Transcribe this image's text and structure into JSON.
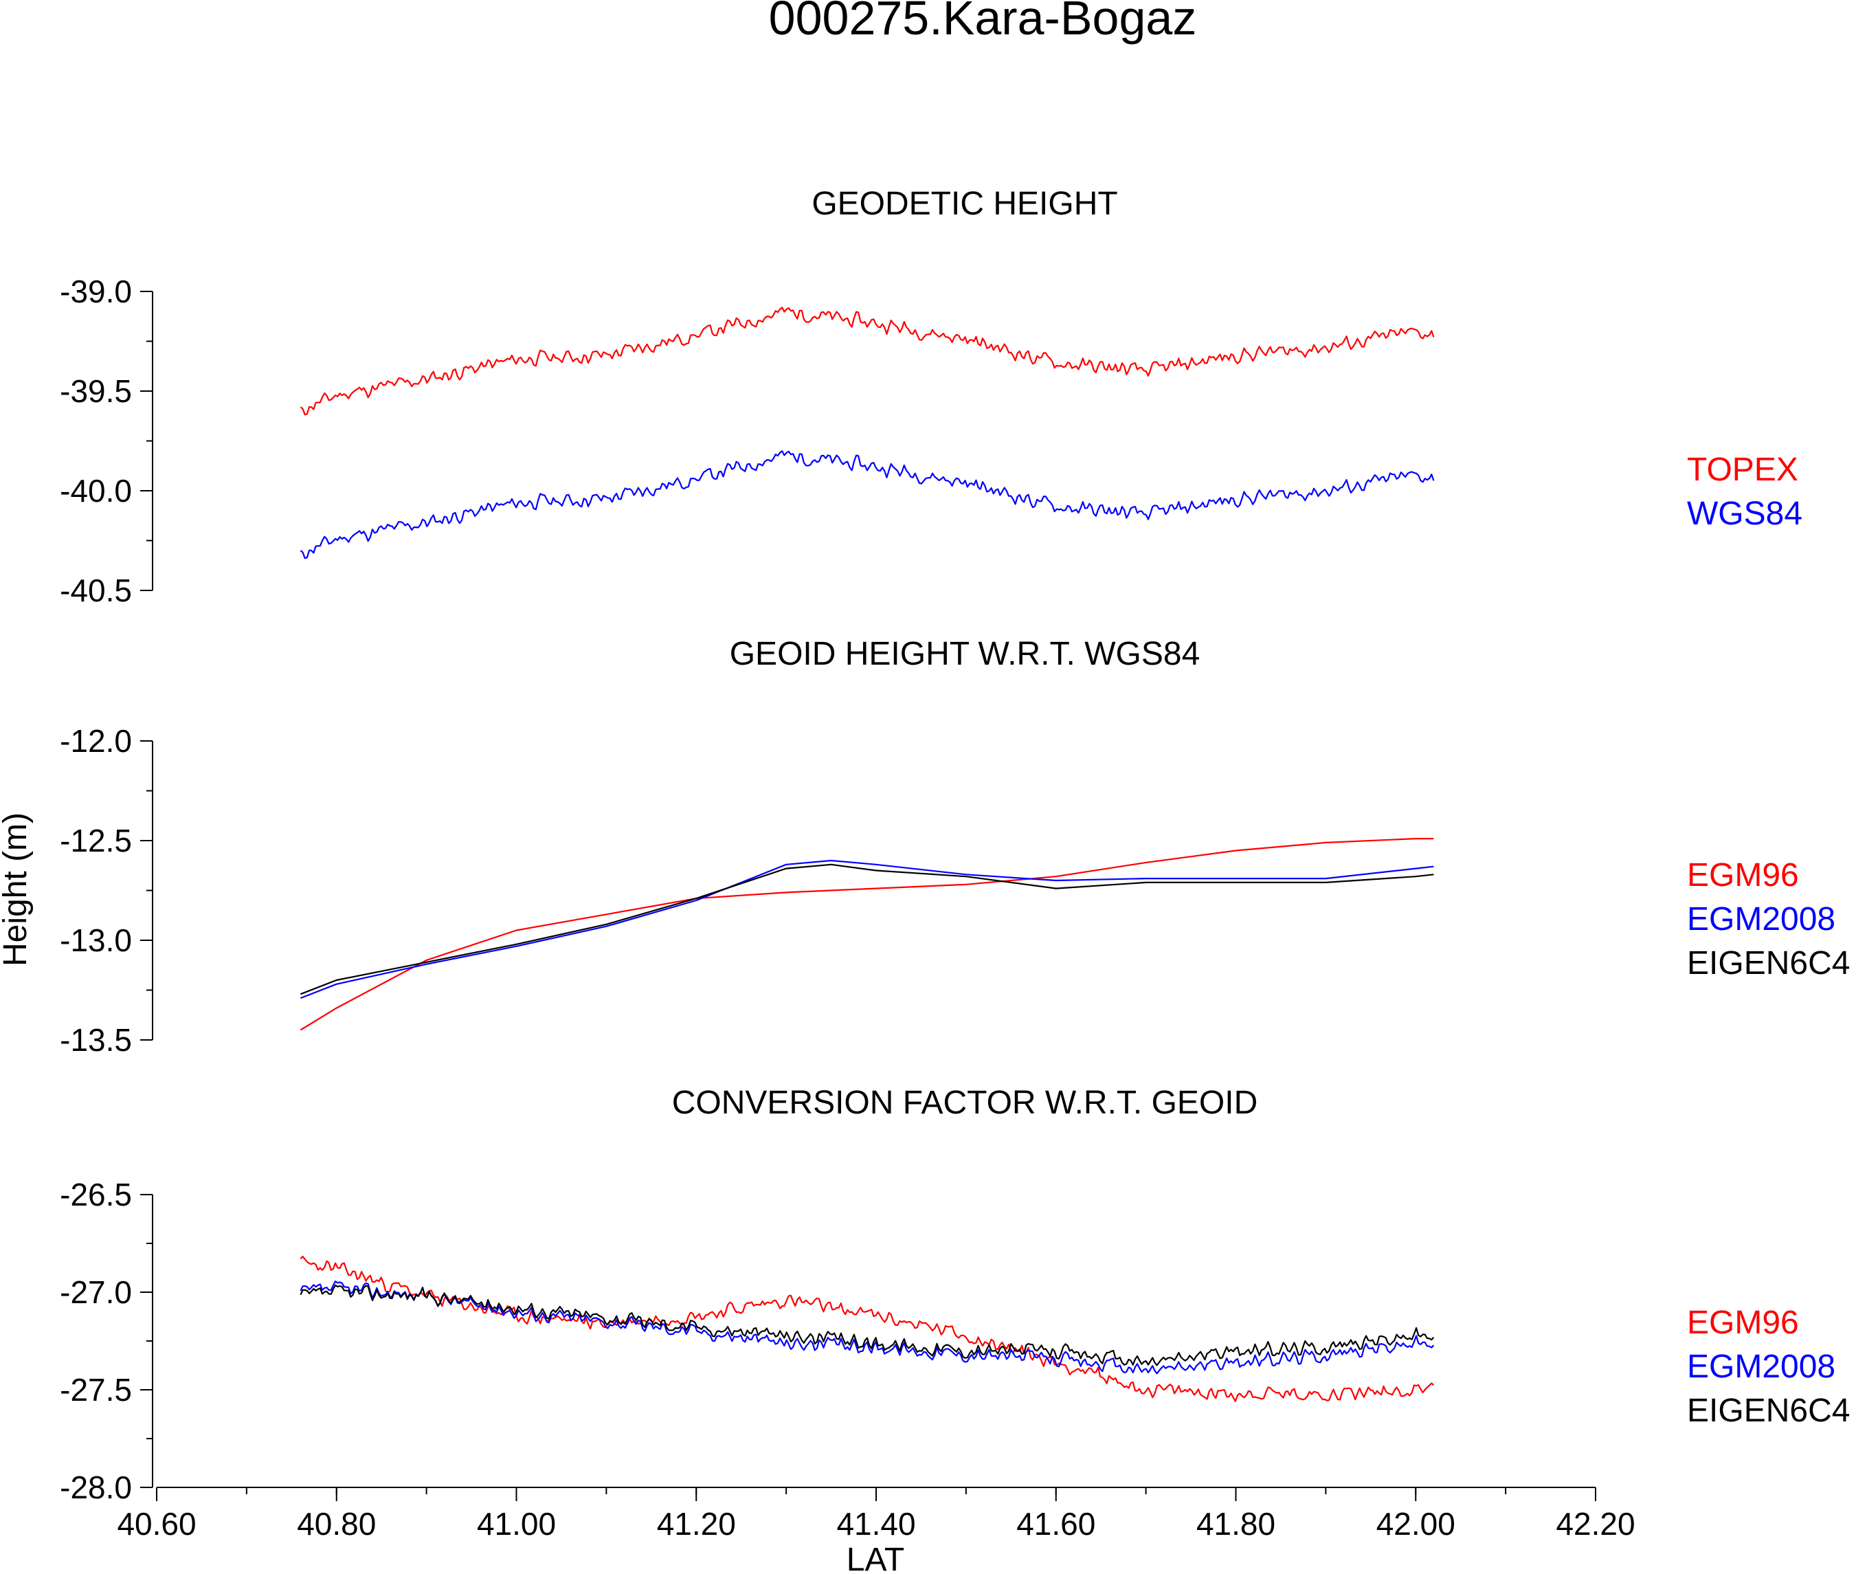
{
  "figure": {
    "title": "000275.Kara-Bogaz",
    "ylabel": "Height (m)",
    "xlabel": "LAT",
    "x_ticks": [
      "40.60",
      "40.80",
      "41.00",
      "41.20",
      "41.40",
      "41.60",
      "41.80",
      "42.00",
      "42.20"
    ],
    "xlim": [
      40.6,
      42.2
    ],
    "x_minor_step": 0.1
  },
  "colors": {
    "red": "#ff0000",
    "blue": "#0000ff",
    "black": "#000000"
  },
  "chart_data": [
    {
      "type": "line",
      "title": "GEODETIC HEIGHT",
      "ylim": [
        -40.5,
        -39.0
      ],
      "y_ticks": [
        "-39.0",
        "-39.5",
        "-40.0",
        "-40.5"
      ],
      "legend": [
        {
          "label": "TOPEX",
          "color": "#ff0000"
        },
        {
          "label": "WGS84",
          "color": "#0000ff"
        }
      ],
      "series": [
        {
          "name": "TOPEX",
          "color": "#ff0000",
          "noise": 0.045,
          "seed": 11,
          "points": [
            [
              40.76,
              -39.6
            ],
            [
              40.8,
              -39.52
            ],
            [
              40.9,
              -39.44
            ],
            [
              41.0,
              -39.34
            ],
            [
              41.1,
              -39.32
            ],
            [
              41.2,
              -39.22
            ],
            [
              41.3,
              -39.1
            ],
            [
              41.4,
              -39.16
            ],
            [
              41.5,
              -39.24
            ],
            [
              41.6,
              -39.36
            ],
            [
              41.7,
              -39.4
            ],
            [
              41.8,
              -39.32
            ],
            [
              41.9,
              -39.28
            ],
            [
              42.0,
              -39.2
            ],
            [
              42.02,
              -39.22
            ]
          ]
        },
        {
          "name": "WGS84",
          "color": "#0000ff",
          "noise": 0.045,
          "seed": 11,
          "points": [
            [
              40.76,
              -40.32
            ],
            [
              40.8,
              -40.24
            ],
            [
              40.9,
              -40.16
            ],
            [
              41.0,
              -40.06
            ],
            [
              41.1,
              -40.04
            ],
            [
              41.2,
              -39.94
            ],
            [
              41.3,
              -39.82
            ],
            [
              41.4,
              -39.88
            ],
            [
              41.5,
              -39.96
            ],
            [
              41.6,
              -40.08
            ],
            [
              41.7,
              -40.12
            ],
            [
              41.8,
              -40.04
            ],
            [
              41.9,
              -40.0
            ],
            [
              42.0,
              -39.92
            ],
            [
              42.02,
              -39.94
            ]
          ]
        }
      ]
    },
    {
      "type": "line",
      "title": "GEOID HEIGHT W.R.T. WGS84",
      "ylim": [
        -13.5,
        -12.0
      ],
      "y_ticks": [
        "-12.0",
        "-12.5",
        "-13.0",
        "-13.5"
      ],
      "legend": [
        {
          "label": "EGM96",
          "color": "#ff0000"
        },
        {
          "label": "EGM2008",
          "color": "#0000ff"
        },
        {
          "label": "EIGEN6C4",
          "color": "#000000"
        }
      ],
      "series": [
        {
          "name": "EGM96",
          "color": "#ff0000",
          "noise": 0,
          "seed": 0,
          "points": [
            [
              40.76,
              -13.45
            ],
            [
              40.8,
              -13.34
            ],
            [
              40.9,
              -13.1
            ],
            [
              41.0,
              -12.95
            ],
            [
              41.1,
              -12.87
            ],
            [
              41.2,
              -12.79
            ],
            [
              41.3,
              -12.76
            ],
            [
              41.4,
              -12.74
            ],
            [
              41.5,
              -12.72
            ],
            [
              41.6,
              -12.68
            ],
            [
              41.7,
              -12.61
            ],
            [
              41.8,
              -12.55
            ],
            [
              41.9,
              -12.51
            ],
            [
              42.0,
              -12.49
            ],
            [
              42.02,
              -12.49
            ]
          ]
        },
        {
          "name": "EGM2008",
          "color": "#0000ff",
          "noise": 0,
          "seed": 0,
          "points": [
            [
              40.76,
              -13.29
            ],
            [
              40.8,
              -13.22
            ],
            [
              40.9,
              -13.12
            ],
            [
              41.0,
              -13.03
            ],
            [
              41.1,
              -12.93
            ],
            [
              41.2,
              -12.8
            ],
            [
              41.3,
              -12.62
            ],
            [
              41.35,
              -12.6
            ],
            [
              41.4,
              -12.62
            ],
            [
              41.5,
              -12.67
            ],
            [
              41.6,
              -12.7
            ],
            [
              41.7,
              -12.69
            ],
            [
              41.8,
              -12.69
            ],
            [
              41.9,
              -12.69
            ],
            [
              42.0,
              -12.64
            ],
            [
              42.02,
              -12.63
            ]
          ]
        },
        {
          "name": "EIGEN6C4",
          "color": "#000000",
          "noise": 0,
          "seed": 0,
          "points": [
            [
              40.76,
              -13.27
            ],
            [
              40.8,
              -13.2
            ],
            [
              40.9,
              -13.11
            ],
            [
              41.0,
              -13.02
            ],
            [
              41.1,
              -12.92
            ],
            [
              41.2,
              -12.79
            ],
            [
              41.3,
              -12.64
            ],
            [
              41.35,
              -12.62
            ],
            [
              41.4,
              -12.65
            ],
            [
              41.5,
              -12.68
            ],
            [
              41.6,
              -12.74
            ],
            [
              41.7,
              -12.71
            ],
            [
              41.8,
              -12.71
            ],
            [
              41.9,
              -12.71
            ],
            [
              42.0,
              -12.68
            ],
            [
              42.02,
              -12.67
            ]
          ]
        }
      ]
    },
    {
      "type": "line",
      "title": "CONVERSION FACTOR W.R.T. GEOID",
      "ylim": [
        -28.0,
        -26.5
      ],
      "y_ticks": [
        "-26.5",
        "-27.0",
        "-27.5",
        "-28.0"
      ],
      "legend": [
        {
          "label": "EGM96",
          "color": "#ff0000"
        },
        {
          "label": "EGM2008",
          "color": "#0000ff"
        },
        {
          "label": "EIGEN6C4",
          "color": "#000000"
        }
      ],
      "series": [
        {
          "name": "EGM96",
          "color": "#ff0000",
          "noise": 0.045,
          "seed": 23,
          "points": [
            [
              40.76,
              -26.85
            ],
            [
              40.8,
              -26.88
            ],
            [
              40.9,
              -27.02
            ],
            [
              41.0,
              -27.12
            ],
            [
              41.1,
              -27.16
            ],
            [
              41.2,
              -27.12
            ],
            [
              41.3,
              -27.04
            ],
            [
              41.4,
              -27.12
            ],
            [
              41.5,
              -27.22
            ],
            [
              41.6,
              -27.36
            ],
            [
              41.7,
              -27.5
            ],
            [
              41.8,
              -27.52
            ],
            [
              41.9,
              -27.52
            ],
            [
              42.0,
              -27.5
            ],
            [
              42.02,
              -27.46
            ]
          ]
        },
        {
          "name": "EGM2008",
          "color": "#0000ff",
          "noise": 0.045,
          "seed": 37,
          "points": [
            [
              40.76,
              -27.0
            ],
            [
              40.8,
              -26.98
            ],
            [
              40.9,
              -27.02
            ],
            [
              41.0,
              -27.1
            ],
            [
              41.1,
              -27.15
            ],
            [
              41.2,
              -27.2
            ],
            [
              41.3,
              -27.26
            ],
            [
              41.4,
              -27.28
            ],
            [
              41.5,
              -27.32
            ],
            [
              41.6,
              -27.34
            ],
            [
              41.7,
              -27.4
            ],
            [
              41.8,
              -27.36
            ],
            [
              41.9,
              -27.32
            ],
            [
              42.0,
              -27.26
            ],
            [
              42.02,
              -27.28
            ]
          ]
        },
        {
          "name": "EIGEN6C4",
          "color": "#000000",
          "noise": 0.045,
          "seed": 37,
          "points": [
            [
              40.76,
              -27.02
            ],
            [
              40.8,
              -27.0
            ],
            [
              40.9,
              -27.02
            ],
            [
              41.0,
              -27.08
            ],
            [
              41.1,
              -27.13
            ],
            [
              41.2,
              -27.18
            ],
            [
              41.3,
              -27.22
            ],
            [
              41.4,
              -27.26
            ],
            [
              41.5,
              -27.3
            ],
            [
              41.6,
              -27.3
            ],
            [
              41.7,
              -27.36
            ],
            [
              41.8,
              -27.3
            ],
            [
              41.9,
              -27.28
            ],
            [
              42.0,
              -27.22
            ],
            [
              42.02,
              -27.24
            ]
          ]
        }
      ]
    }
  ]
}
